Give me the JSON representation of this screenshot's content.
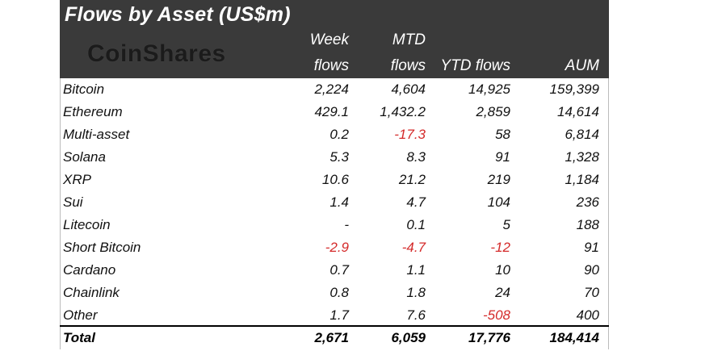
{
  "title": "Flows by Asset (US$m)",
  "brand": "CoinShares",
  "chart_data": {
    "type": "table",
    "title": "Flows by Asset (US$m)",
    "columns": [
      {
        "line1": "Week",
        "line2": "flows"
      },
      {
        "line1": "MTD",
        "line2": "flows"
      },
      {
        "line1": "",
        "line2": "YTD flows"
      },
      {
        "line1": "",
        "line2": "AUM"
      }
    ],
    "rows": [
      {
        "asset": "Bitcoin",
        "values": [
          "2,224",
          "4,604",
          "14,925",
          "159,399"
        ],
        "negative": [
          false,
          false,
          false,
          false
        ]
      },
      {
        "asset": "Ethereum",
        "values": [
          "429.1",
          "1,432.2",
          "2,859",
          "14,614"
        ],
        "negative": [
          false,
          false,
          false,
          false
        ]
      },
      {
        "asset": "Multi-asset",
        "values": [
          "0.2",
          "-17.3",
          "58",
          "6,814"
        ],
        "negative": [
          false,
          true,
          false,
          false
        ]
      },
      {
        "asset": "Solana",
        "values": [
          "5.3",
          "8.3",
          "91",
          "1,328"
        ],
        "negative": [
          false,
          false,
          false,
          false
        ]
      },
      {
        "asset": "XRP",
        "values": [
          "10.6",
          "21.2",
          "219",
          "1,184"
        ],
        "negative": [
          false,
          false,
          false,
          false
        ]
      },
      {
        "asset": "Sui",
        "values": [
          "1.4",
          "4.7",
          "104",
          "236"
        ],
        "negative": [
          false,
          false,
          false,
          false
        ]
      },
      {
        "asset": "Litecoin",
        "values": [
          "-",
          "0.1",
          "5",
          "188"
        ],
        "negative": [
          false,
          false,
          false,
          false
        ]
      },
      {
        "asset": "Short Bitcoin",
        "values": [
          "-2.9",
          "-4.7",
          "-12",
          "91"
        ],
        "negative": [
          true,
          true,
          true,
          false
        ]
      },
      {
        "asset": "Cardano",
        "values": [
          "0.7",
          "1.1",
          "10",
          "90"
        ],
        "negative": [
          false,
          false,
          false,
          false
        ]
      },
      {
        "asset": "Chainlink",
        "values": [
          "0.8",
          "1.8",
          "24",
          "70"
        ],
        "negative": [
          false,
          false,
          false,
          false
        ]
      },
      {
        "asset": "Other",
        "values": [
          "1.7",
          "7.6",
          "-508",
          "400"
        ],
        "negative": [
          false,
          false,
          true,
          false
        ]
      }
    ],
    "total": {
      "asset": "Total",
      "values": [
        "2,671",
        "6,059",
        "17,776",
        "184,414"
      ]
    }
  },
  "colors": {
    "header_bg": "#3a3a3a",
    "header_text": "#ffffff",
    "negative": "#d42a2a",
    "text": "#111111"
  }
}
